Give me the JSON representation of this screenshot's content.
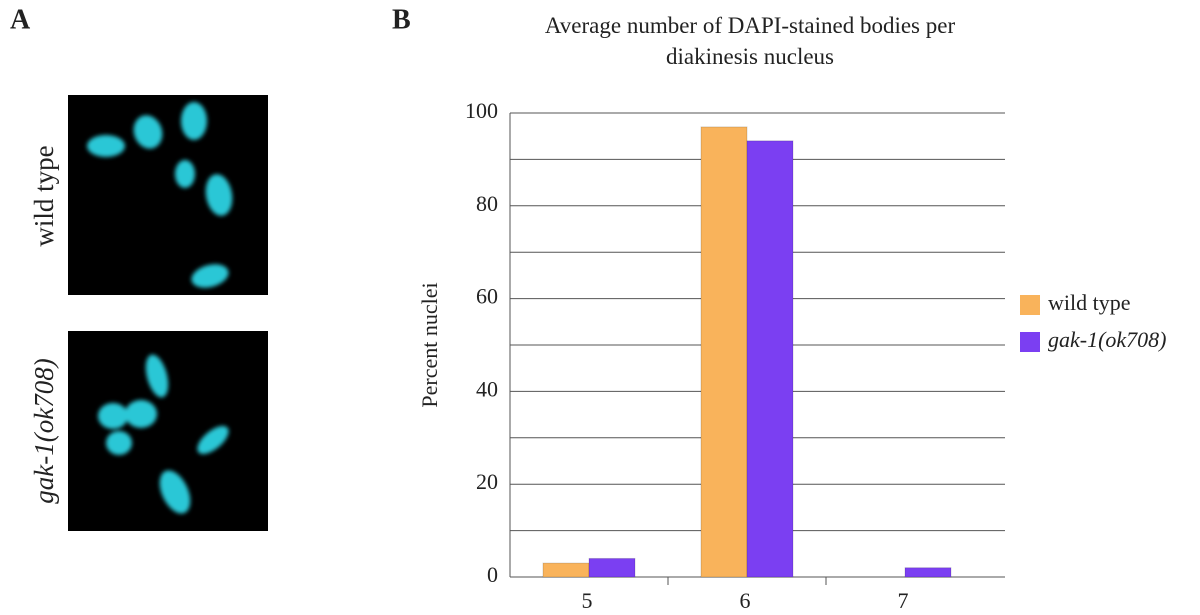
{
  "panels": {
    "a": {
      "label": "A",
      "images": [
        {
          "label": "wild type"
        },
        {
          "label": "gak-1(ok708)"
        }
      ]
    },
    "b": {
      "label": "B"
    }
  },
  "chart_data": {
    "type": "bar",
    "title": "Average number of DAPI-stained bodies per diakinesis nucleus",
    "y_label": "Percent nuclei",
    "categories": [
      "5",
      "6",
      "7"
    ],
    "series": [
      {
        "name": "wild type",
        "color": "#f9b35b",
        "values": [
          3,
          97,
          0
        ]
      },
      {
        "name": "gak-1(ok708)",
        "color": "#7b3ff2",
        "values": [
          4,
          94,
          2
        ]
      }
    ],
    "ylim": [
      0,
      100
    ],
    "yticks": [
      0,
      20,
      40,
      60,
      80,
      100
    ],
    "minor_yticks": [
      10,
      30,
      50,
      70,
      90
    ],
    "grid": true,
    "legend": "right"
  }
}
